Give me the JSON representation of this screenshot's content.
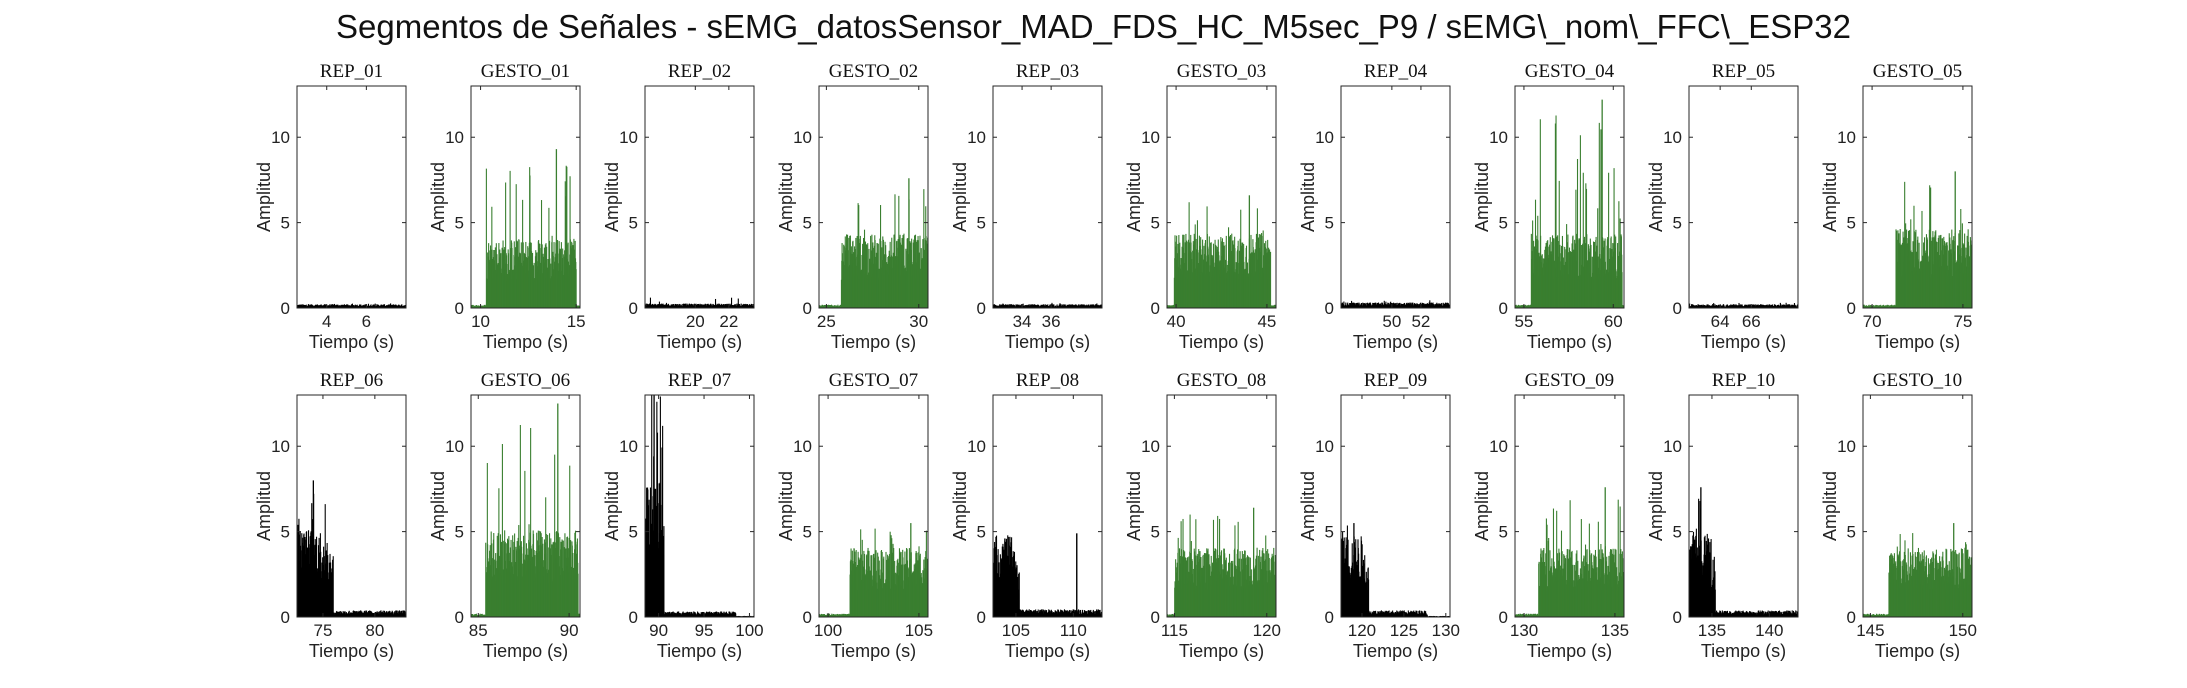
{
  "title": "Segmentos de Señales - sEMG_datosSensor_MAD_FDS_HC_M5sec_P9 / sEMG\\_nom\\_FFC\\_ESP32",
  "colors": {
    "rep": "#000000",
    "gesto": "#3a7f30"
  },
  "chart_data": [
    {
      "type": "bar",
      "title": "REP_01",
      "kind": "rep",
      "xlim": [
        2.5,
        8
      ],
      "xticks": [
        4,
        6
      ],
      "ylim": [
        0,
        13
      ],
      "yticks": [
        0,
        5,
        10
      ],
      "xlabel": "Tiempo (s)",
      "ylabel": "Amplitud",
      "active": null,
      "base": 0.17,
      "peak": 0.3
    },
    {
      "type": "bar",
      "title": "GESTO_01",
      "kind": "gesto",
      "xlim": [
        9.5,
        15.2
      ],
      "xticks": [
        10,
        15
      ],
      "ylim": [
        0,
        13
      ],
      "yticks": [
        0,
        5,
        10
      ],
      "xlabel": "Tiempo (s)",
      "ylabel": "Amplitud",
      "active": [
        10.3,
        15.0
      ],
      "base": 2.8,
      "peak": 9.3
    },
    {
      "type": "bar",
      "title": "REP_02",
      "kind": "rep",
      "xlim": [
        17,
        23.5
      ],
      "xticks": [
        20,
        22
      ],
      "ylim": [
        0,
        13
      ],
      "yticks": [
        0,
        5,
        10
      ],
      "xlabel": "Tiempo (s)",
      "ylabel": "Amplitud",
      "active": null,
      "base": 0.2,
      "peak": 0.9
    },
    {
      "type": "bar",
      "title": "GESTO_02",
      "kind": "gesto",
      "xlim": [
        24.6,
        30.5
      ],
      "xticks": [
        25,
        30
      ],
      "ylim": [
        0,
        13
      ],
      "yticks": [
        0,
        5,
        10
      ],
      "xlabel": "Tiempo (s)",
      "ylabel": "Amplitud",
      "active": [
        25.8,
        30.5
      ],
      "base": 3.0,
      "peak": 7.6
    },
    {
      "type": "bar",
      "title": "REP_03",
      "kind": "rep",
      "xlim": [
        32,
        39.5
      ],
      "xticks": [
        34,
        36
      ],
      "ylim": [
        0,
        13
      ],
      "yticks": [
        0,
        5,
        10
      ],
      "xlabel": "Tiempo (s)",
      "ylabel": "Amplitud",
      "active": null,
      "base": 0.17,
      "peak": 0.35
    },
    {
      "type": "bar",
      "title": "GESTO_03",
      "kind": "gesto",
      "xlim": [
        39.5,
        45.5
      ],
      "xticks": [
        40,
        45
      ],
      "ylim": [
        0,
        13
      ],
      "yticks": [
        0,
        5,
        10
      ],
      "xlabel": "Tiempo (s)",
      "ylabel": "Amplitud",
      "active": [
        39.9,
        45.2
      ],
      "base": 3.0,
      "peak": 6.6
    },
    {
      "type": "bar",
      "title": "REP_04",
      "kind": "rep",
      "xlim": [
        46.5,
        54
      ],
      "xticks": [
        50,
        52
      ],
      "ylim": [
        0,
        13
      ],
      "yticks": [
        0,
        5,
        10
      ],
      "xlabel": "Tiempo (s)",
      "ylabel": "Amplitud",
      "active": null,
      "base": 0.25,
      "peak": 0.55
    },
    {
      "type": "bar",
      "title": "GESTO_04",
      "kind": "gesto",
      "xlim": [
        54.5,
        60.6
      ],
      "xticks": [
        55,
        60
      ],
      "ylim": [
        0,
        13
      ],
      "yticks": [
        0,
        5,
        10
      ],
      "xlabel": "Tiempo (s)",
      "ylabel": "Amplitud",
      "active": [
        55.4,
        60.5
      ],
      "base": 3.0,
      "peak": 12.2
    },
    {
      "type": "bar",
      "title": "REP_05",
      "kind": "rep",
      "xlim": [
        62,
        69
      ],
      "xticks": [
        64,
        66
      ],
      "ylim": [
        0,
        13
      ],
      "yticks": [
        0,
        5,
        10
      ],
      "xlabel": "Tiempo (s)",
      "ylabel": "Amplitud",
      "active": null,
      "base": 0.17,
      "peak": 0.35
    },
    {
      "type": "bar",
      "title": "GESTO_05",
      "kind": "gesto",
      "xlim": [
        69.5,
        75.5
      ],
      "xticks": [
        70,
        75
      ],
      "ylim": [
        0,
        13
      ],
      "yticks": [
        0,
        5,
        10
      ],
      "xlabel": "Tiempo (s)",
      "ylabel": "Amplitud",
      "active": [
        71.3,
        75.5
      ],
      "base": 3.2,
      "peak": 8.0
    },
    {
      "type": "bar",
      "title": "REP_06",
      "kind": "rep",
      "xlim": [
        72.5,
        83
      ],
      "xticks": [
        75,
        80
      ],
      "ylim": [
        0,
        13
      ],
      "yticks": [
        0,
        5,
        10
      ],
      "xlabel": "Tiempo (s)",
      "ylabel": "Amplitud",
      "active": [
        72.5,
        76.0
      ],
      "base": 3.6,
      "peak": 8.0,
      "tail": 0.3
    },
    {
      "type": "bar",
      "title": "GESTO_06",
      "kind": "gesto",
      "xlim": [
        84.6,
        90.6
      ],
      "xticks": [
        85,
        90
      ],
      "ylim": [
        0,
        13
      ],
      "yticks": [
        0,
        5,
        10
      ],
      "xlabel": "Tiempo (s)",
      "ylabel": "Amplitud",
      "active": [
        85.4,
        90.5
      ],
      "base": 3.5,
      "peak": 12.5
    },
    {
      "type": "bar",
      "title": "REP_07",
      "kind": "rep",
      "xlim": [
        88.5,
        100.5
      ],
      "xticks": [
        90,
        95,
        100
      ],
      "ylim": [
        0,
        13
      ],
      "yticks": [
        0,
        5,
        10
      ],
      "xlabel": "Tiempo (s)",
      "ylabel": "Amplitud",
      "active": [
        88.6,
        90.6
      ],
      "base": 5.5,
      "peak": 13,
      "tail": 0.25,
      "tail_end": 98.5
    },
    {
      "type": "bar",
      "title": "GESTO_07",
      "kind": "gesto",
      "xlim": [
        99.5,
        105.5
      ],
      "xticks": [
        100,
        105
      ],
      "ylim": [
        0,
        13
      ],
      "yticks": [
        0,
        5,
        10
      ],
      "xlabel": "Tiempo (s)",
      "ylabel": "Amplitud",
      "active": [
        101.2,
        105.5
      ],
      "base": 2.8,
      "peak": 5.5
    },
    {
      "type": "bar",
      "title": "REP_08",
      "kind": "rep",
      "xlim": [
        103,
        112.5
      ],
      "xticks": [
        105,
        110
      ],
      "ylim": [
        0,
        13
      ],
      "yticks": [
        0,
        5,
        10
      ],
      "xlabel": "Tiempo (s)",
      "ylabel": "Amplitud",
      "active": [
        103.0,
        105.3
      ],
      "base": 3.3,
      "peak": 4.6,
      "tail": 0.35,
      "spike": [
        110.3,
        4.9
      ]
    },
    {
      "type": "bar",
      "title": "GESTO_08",
      "kind": "gesto",
      "xlim": [
        114.6,
        120.5
      ],
      "xticks": [
        115,
        120
      ],
      "ylim": [
        0,
        13
      ],
      "yticks": [
        0,
        5,
        10
      ],
      "xlabel": "Tiempo (s)",
      "ylabel": "Amplitud",
      "active": [
        115.0,
        120.5
      ],
      "base": 2.8,
      "peak": 6.4
    },
    {
      "type": "bar",
      "title": "REP_09",
      "kind": "rep",
      "xlim": [
        117.5,
        130.5
      ],
      "xticks": [
        120,
        125,
        130
      ],
      "ylim": [
        0,
        13
      ],
      "yticks": [
        0,
        5,
        10
      ],
      "xlabel": "Tiempo (s)",
      "ylabel": "Amplitud",
      "active": [
        117.6,
        120.8
      ],
      "base": 3.3,
      "peak": 5.5,
      "tail": 0.3,
      "tail_end": 127.8
    },
    {
      "type": "bar",
      "title": "GESTO_09",
      "kind": "gesto",
      "xlim": [
        129.5,
        135.5
      ],
      "xticks": [
        130,
        135
      ],
      "ylim": [
        0,
        13
      ],
      "yticks": [
        0,
        5,
        10
      ],
      "xlabel": "Tiempo (s)",
      "ylabel": "Amplitud",
      "active": [
        130.8,
        135.5
      ],
      "base": 2.8,
      "peak": 7.6
    },
    {
      "type": "bar",
      "title": "REP_10",
      "kind": "rep",
      "xlim": [
        133,
        142.5
      ],
      "xticks": [
        135,
        140
      ],
      "ylim": [
        0,
        13
      ],
      "yticks": [
        0,
        5,
        10
      ],
      "xlabel": "Tiempo (s)",
      "ylabel": "Amplitud",
      "active": [
        133.0,
        135.3
      ],
      "base": 3.5,
      "peak": 7.6,
      "tail": 0.3
    },
    {
      "type": "bar",
      "title": "GESTO_10",
      "kind": "gesto",
      "xlim": [
        144.6,
        150.5
      ],
      "xticks": [
        145,
        150
      ],
      "ylim": [
        0,
        13
      ],
      "yticks": [
        0,
        5,
        10
      ],
      "xlabel": "Tiempo (s)",
      "ylabel": "Amplitud",
      "active": [
        146.0,
        150.5
      ],
      "base": 2.8,
      "peak": 5.5
    }
  ]
}
